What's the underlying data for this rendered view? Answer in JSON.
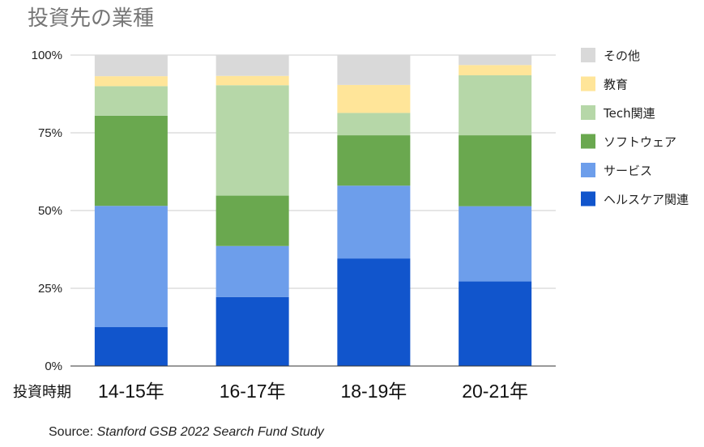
{
  "chart_data": {
    "type": "bar",
    "stacked": true,
    "normalized": true,
    "title": "投資先の業種",
    "xlabel": "投資時期",
    "ylabel": "",
    "categories": [
      "14-15年",
      "16-17年",
      "18-19年",
      "20-21年"
    ],
    "yticks": [
      "0%",
      "25%",
      "50%",
      "75%",
      "100%"
    ],
    "ylim": [
      0,
      100
    ],
    "grid": true,
    "legend_position": "right",
    "series": [
      {
        "name": "ヘルスケア関連",
        "color": "#1155cc",
        "values": [
          12.5,
          22.2,
          34.6,
          27.2
        ]
      },
      {
        "name": "サービス",
        "color": "#6d9eeb",
        "values": [
          39.0,
          16.4,
          23.4,
          24.2
        ]
      },
      {
        "name": "ソフトウェア",
        "color": "#6aa84f",
        "values": [
          29.0,
          16.2,
          16.2,
          22.8
        ]
      },
      {
        "name": "Tech関連",
        "color": "#b6d7a8",
        "values": [
          9.5,
          35.5,
          7.2,
          19.3
        ]
      },
      {
        "name": "教育",
        "color": "#ffe599",
        "values": [
          3.2,
          3.0,
          9.0,
          3.3
        ]
      },
      {
        "name": "その他",
        "color": "#d9d9d9",
        "values": [
          6.8,
          6.7,
          9.6,
          3.2
        ]
      }
    ]
  },
  "source": {
    "prefix": "Source: ",
    "title": "Stanford GSB 2022 Search Fund Study"
  }
}
